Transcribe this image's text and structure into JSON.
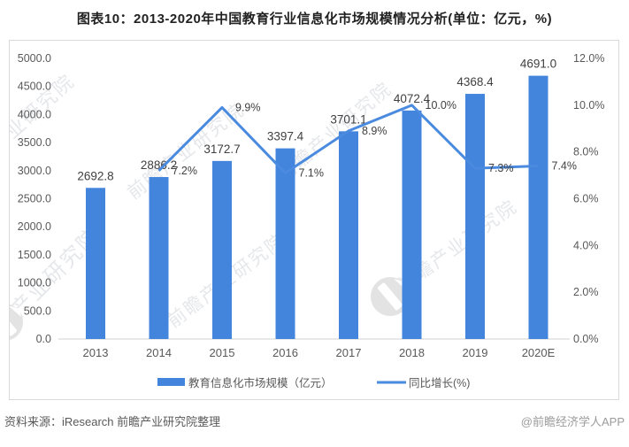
{
  "title": "图表10：2013-2020年中国教育行业信息化市场规模情况分析(单位：亿元，%)",
  "watermark": {
    "text": "前瞻产业研究院"
  },
  "footer": {
    "source": "资料来源：iResearch 前瞻产业研究院整理",
    "credit": "@前瞻经济学人APP"
  },
  "colors": {
    "bar": "#4384dc",
    "line": "#4a8adf",
    "axis_line": "#d0d0d0",
    "tick_label": "#595959",
    "data_label": "#404040",
    "border": "#d9d9d9"
  },
  "chart_data": {
    "type": "bar+line combo",
    "title": "图表10：2013-2020年中国教育行业信息化市场规模情况分析(单位：亿元，%)",
    "categories": [
      "2013",
      "2014",
      "2015",
      "2016",
      "2017",
      "2018",
      "2019",
      "2020E"
    ],
    "series": [
      {
        "name": "教育信息化市场规模（亿元）",
        "type": "bar",
        "axis": "left",
        "values": [
          2692.8,
          2886.2,
          3172.7,
          3397.4,
          3701.1,
          4072.4,
          4368.4,
          4691.0
        ]
      },
      {
        "name": "同比增长(%)",
        "type": "line",
        "axis": "right",
        "values": [
          null,
          7.2,
          9.9,
          7.1,
          8.9,
          10.0,
          7.3,
          7.4
        ]
      }
    ],
    "left_axis": {
      "min": 0,
      "max": 5000,
      "step": 500,
      "ticks": [
        "0.0",
        "500.0",
        "1000.0",
        "1500.0",
        "2000.0",
        "2500.0",
        "3000.0",
        "3500.0",
        "4000.0",
        "4500.0",
        "5000.0"
      ]
    },
    "right_axis": {
      "min": 0,
      "max": 12,
      "step": 2,
      "ticks": [
        "0.0%",
        "2.0%",
        "4.0%",
        "6.0%",
        "8.0%",
        "10.0%",
        "12.0%"
      ]
    },
    "grid": false,
    "legend_position": "bottom",
    "legend": [
      "教育信息化市场规模（亿元）",
      "同比增长(%)"
    ]
  }
}
